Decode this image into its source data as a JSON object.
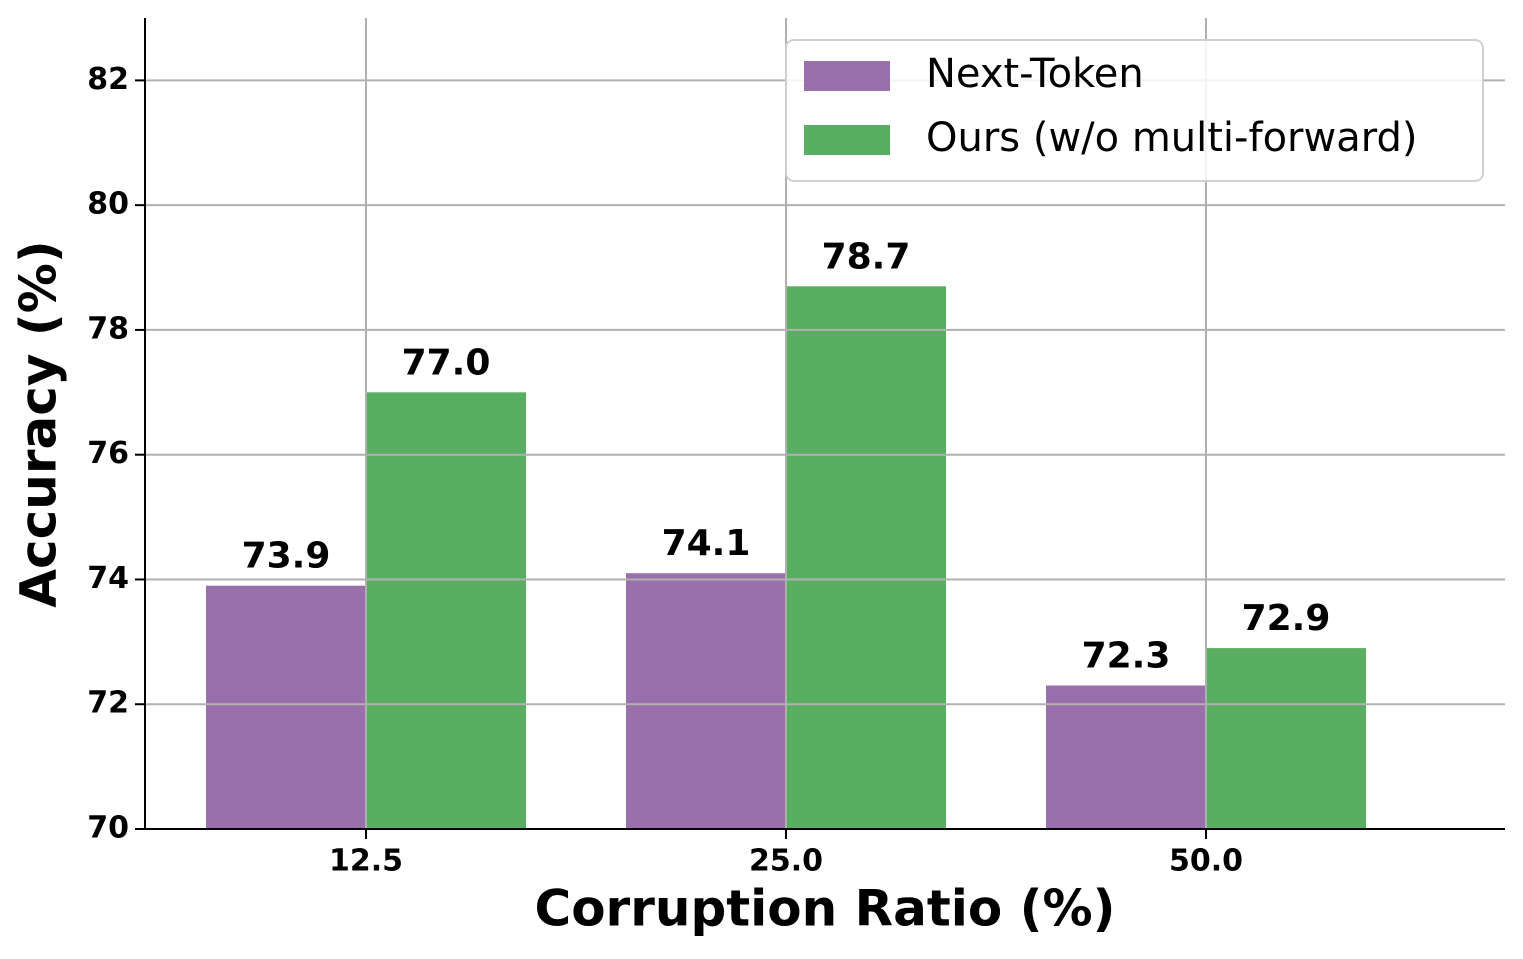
{
  "chart_data": {
    "type": "bar",
    "x_label": "Corruption Ratio (%)",
    "y_label": "Accuracy (%)",
    "categories": [
      "12.5",
      "25.0",
      "50.0"
    ],
    "series": [
      {
        "name": "Next-Token",
        "color": "#9970ab",
        "values": [
          73.9,
          74.1,
          72.3
        ],
        "value_labels": [
          "73.9",
          "74.1",
          "72.3"
        ]
      },
      {
        "name": "Ours (w/o multi-forward)",
        "color": "#5aae61",
        "values": [
          77.0,
          78.7,
          72.9
        ],
        "value_labels": [
          "77.0",
          "78.7",
          "72.9"
        ]
      }
    ],
    "ylim": [
      70,
      83
    ],
    "yticks": [
      70,
      72,
      74,
      76,
      78,
      80,
      82
    ],
    "grid": true,
    "legend": "upper right"
  }
}
